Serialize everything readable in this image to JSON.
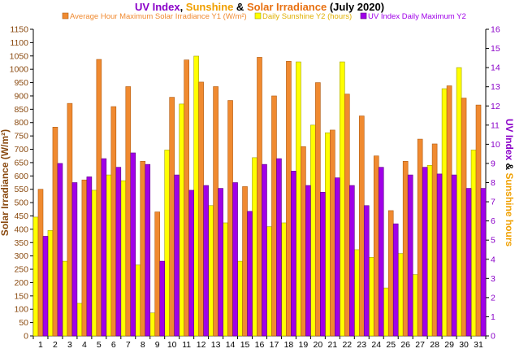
{
  "chart_data": {
    "type": "bar",
    "title_parts": [
      {
        "text": "UV Index",
        "color": "#8a00c8"
      },
      {
        "text": ", ",
        "color": "#000000"
      },
      {
        "text": "Sunshine",
        "color": "#f0a000"
      },
      {
        "text": " & ",
        "color": "#000000"
      },
      {
        "text": "Solar Irradiance",
        "color": "#e87010"
      },
      {
        "text": " (July 2020)",
        "color": "#000000"
      }
    ],
    "ylabel_left": "Solar Irradiance (W/m²)",
    "ylabel_right_parts": [
      {
        "text": "UV Index",
        "color": "#8a00c8"
      },
      {
        "text": " & ",
        "color": "#000000"
      },
      {
        "text": "Sunshine hours",
        "color": "#f0a000"
      }
    ],
    "ylim_left": [
      0,
      1150
    ],
    "yticks_left": [
      0,
      50,
      100,
      150,
      200,
      250,
      300,
      350,
      400,
      450,
      500,
      550,
      600,
      650,
      700,
      750,
      800,
      850,
      900,
      950,
      1000,
      1050,
      1100,
      1150
    ],
    "ylim_right": [
      0,
      16
    ],
    "yticks_right": [
      0,
      1,
      2,
      3,
      4,
      5,
      6,
      7,
      8,
      9,
      10,
      11,
      12,
      13,
      14,
      15,
      16
    ],
    "categories": [
      "1",
      "2",
      "3",
      "4",
      "5",
      "6",
      "7",
      "8",
      "9",
      "10",
      "11",
      "12",
      "13",
      "14",
      "15",
      "16",
      "17",
      "18",
      "19",
      "20",
      "21",
      "22",
      "23",
      "24",
      "25",
      "26",
      "27",
      "28",
      "29",
      "30",
      "31"
    ],
    "series": [
      {
        "name": "Average Hour Maximum Solar Irradiance Y1 (W/m²)",
        "axis": "left",
        "color": "#f08a30",
        "stroke": "#b05a10",
        "values": [
          550,
          783,
          872,
          585,
          1037,
          860,
          935,
          655,
          465,
          895,
          1035,
          952,
          935,
          883,
          560,
          1045,
          900,
          1030,
          710,
          950,
          772,
          907,
          825,
          675,
          470,
          655,
          738,
          720,
          938,
          892,
          866
        ]
      },
      {
        "name": "Daily Sunshine Y2 (hours)",
        "axis": "right",
        "color": "#ffff00",
        "stroke": "#a0a000",
        "values": [
          6.2,
          5.5,
          3.9,
          1.7,
          7.6,
          8.4,
          8.1,
          3.7,
          1.2,
          9.7,
          12.1,
          14.6,
          6.8,
          5.9,
          3.9,
          9.3,
          5.7,
          5.9,
          14.3,
          11.0,
          10.6,
          14.3,
          4.5,
          4.1,
          2.5,
          4.3,
          3.2,
          8.9,
          12.9,
          14.0,
          9.7
        ]
      },
      {
        "name": "UV Index Daily Maximum Y2",
        "axis": "right",
        "color": "#a000e8",
        "stroke": "#5a0080",
        "values": [
          5.2,
          9.0,
          8.0,
          8.3,
          9.25,
          8.8,
          9.55,
          8.95,
          3.9,
          8.4,
          7.6,
          7.85,
          7.7,
          8.0,
          6.5,
          8.95,
          9.25,
          8.6,
          7.85,
          7.5,
          8.25,
          7.85,
          6.8,
          8.8,
          5.85,
          8.4,
          8.8,
          8.45,
          8.4,
          7.7,
          7.7
        ]
      }
    ],
    "grid": false,
    "legend_placement": "top-center"
  }
}
